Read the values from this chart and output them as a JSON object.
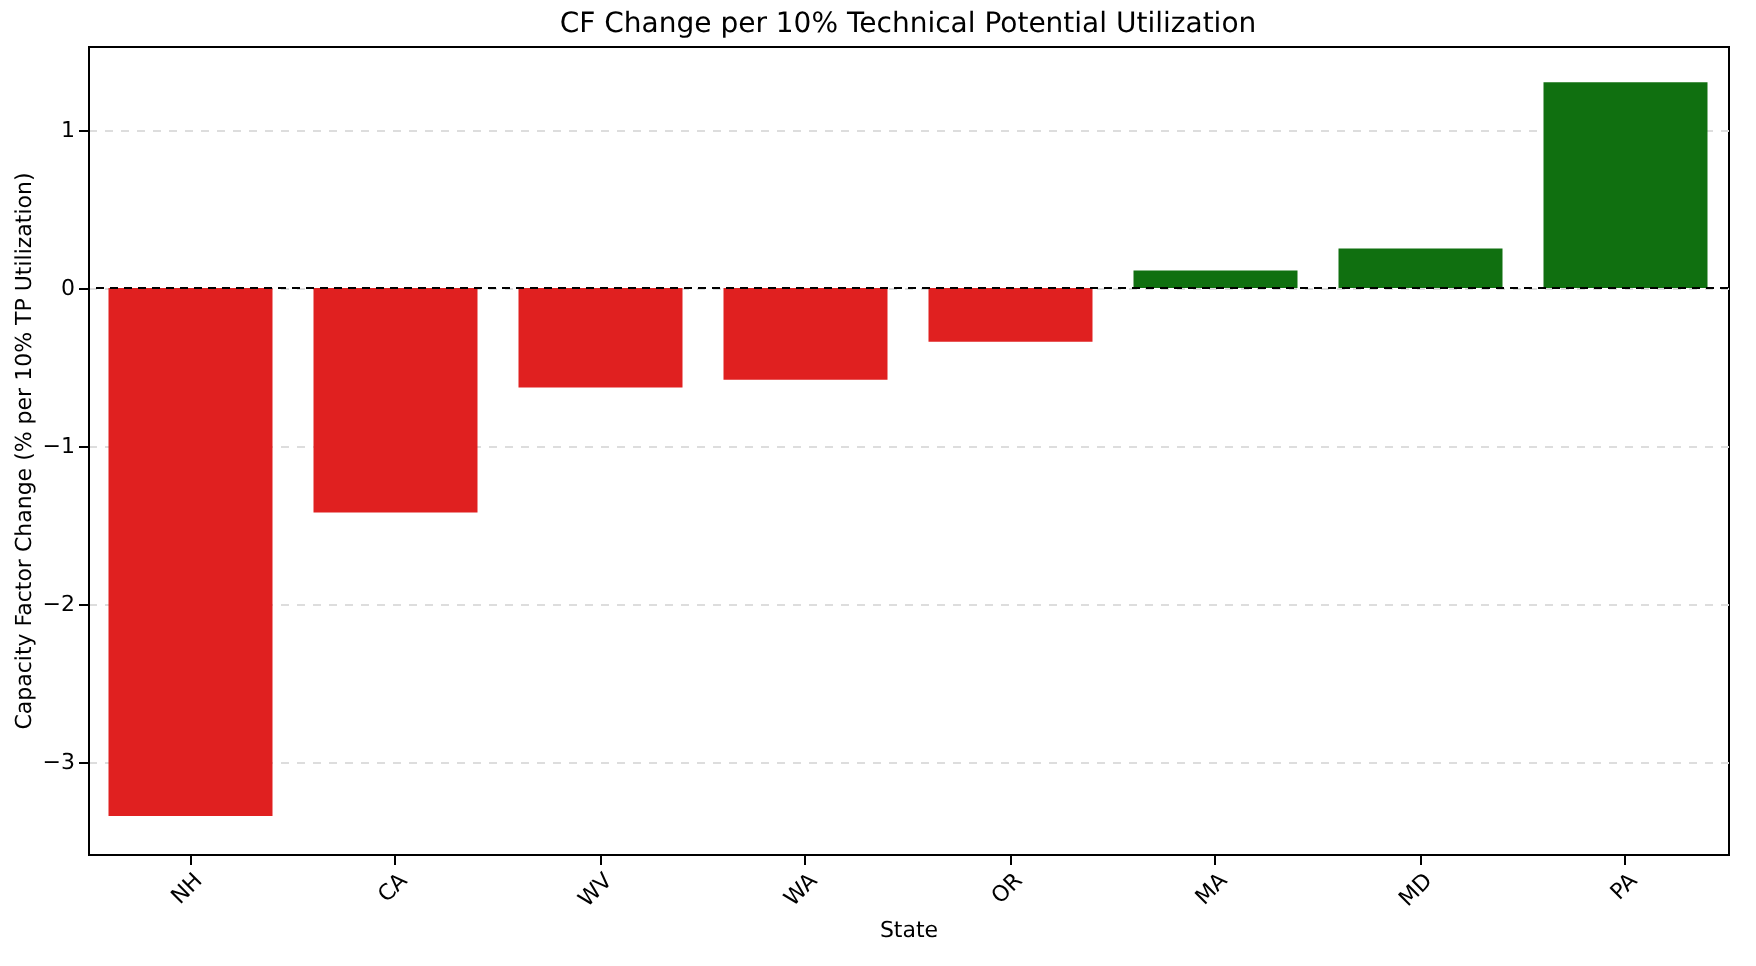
{
  "chart_data": {
    "type": "bar",
    "title": "CF Change per 10% Technical Potential Utilization",
    "xlabel": "State",
    "ylabel": "Capacity Factor Change (% per 10% TP Utilization)",
    "categories": [
      "NH",
      "CA",
      "WV",
      "WA",
      "OR",
      "MA",
      "MD",
      "PA"
    ],
    "values": [
      -3.34,
      -1.42,
      -0.63,
      -0.58,
      -0.34,
      0.11,
      0.25,
      1.3
    ],
    "colors": [
      "#e02020",
      "#e02020",
      "#e02020",
      "#e02020",
      "#e02020",
      "#107010",
      "#107010",
      "#107010"
    ],
    "ylim": [
      -3.58,
      1.53
    ],
    "yticks": [
      -3,
      -2,
      -1,
      0,
      1
    ],
    "grid": "y",
    "ref_lines": [
      {
        "axis": "y",
        "value": 0,
        "color": "#000000",
        "line_style": "dashed"
      }
    ]
  }
}
